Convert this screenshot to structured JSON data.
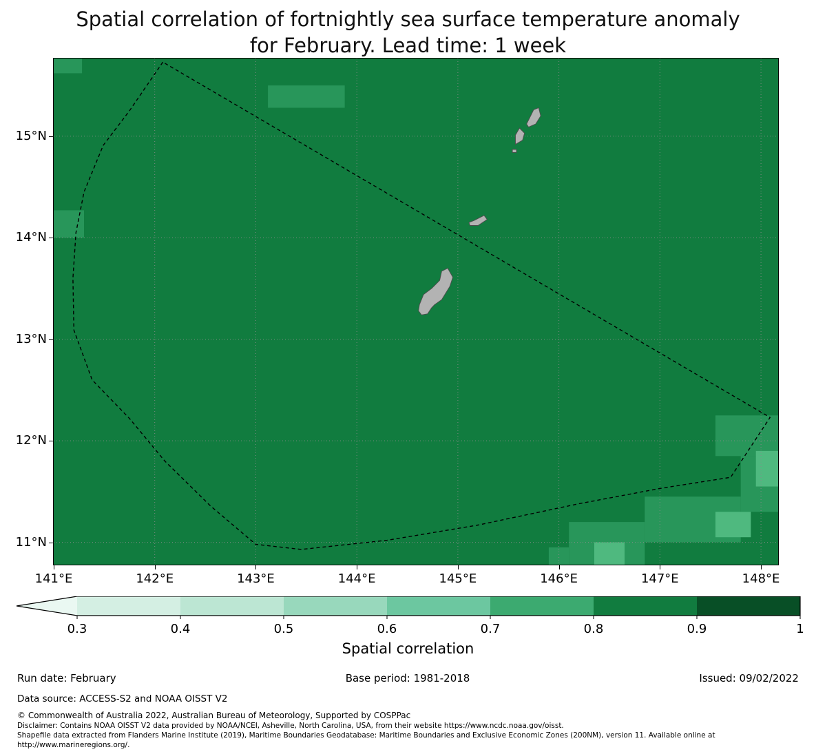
{
  "title": {
    "line1": "Spatial correlation of fortnightly sea surface temperature anomaly",
    "line2": "for February. Lead time: 1 week"
  },
  "footer": {
    "run_date": "Run date: February",
    "base_period": "Base period: 1981-2018",
    "issued": "Issued: 09/02/2022",
    "data_source": "Data source: ACCESS-S2 and NOAA OISST V2",
    "copyright": "© Commonwealth of Australia 2022, Australian Bureau of Meteorology, Supported by COSPPac",
    "disclaimer": "Disclaimer: Contains NOAA OISST V2 data provided by NOAA/NCEI, Asheville, North Carolina, USA, from their website https://www.ncdc.noaa.gov/oisst.",
    "shapefile_note": "Shapefile data extracted from Flanders Marine Institute (2019), Maritime Boundaries Geodatabase: Maritime Boundaries and Exclusive Economic Zones (200NM), version 11. Available online at http://www.marineregions.org/."
  },
  "chart_data": {
    "type": "heatmap",
    "title": "Spatial correlation of fortnightly sea surface temperature anomaly for February. Lead time: 1 week",
    "colorbar_label": "Spatial correlation",
    "region": "Guam / Northern Mariana Islands (lon-lat map)",
    "lon_range": [
      141.0,
      148.17
    ],
    "lat_range": [
      10.78,
      15.765
    ],
    "x_tick_values": [
      141,
      142,
      143,
      144,
      145,
      146,
      147,
      148
    ],
    "x_tick_labels": [
      "141°E",
      "142°E",
      "143°E",
      "144°E",
      "145°E",
      "146°E",
      "147°E",
      "148°E"
    ],
    "y_tick_values": [
      11,
      12,
      13,
      14,
      15
    ],
    "y_tick_labels": [
      "11°N",
      "12°N",
      "13°N",
      "14°N",
      "15°N"
    ],
    "grid": true,
    "base_value_bin": "0.8-0.9",
    "base_color": "#117c3f",
    "patch_colors": [
      "#28965a",
      "#4fb97f"
    ],
    "patches": [
      [
        141.0,
        15.62,
        141.28,
        15.77,
        1
      ],
      [
        143.12,
        15.28,
        143.88,
        15.5,
        1
      ],
      [
        141.0,
        14.0,
        141.3,
        14.27,
        1
      ],
      [
        147.55,
        11.85,
        148.2,
        12.25,
        1
      ],
      [
        147.8,
        11.3,
        148.2,
        11.85,
        1
      ],
      [
        147.95,
        11.55,
        148.2,
        11.9,
        2
      ],
      [
        146.85,
        11.0,
        147.8,
        11.45,
        1
      ],
      [
        147.55,
        11.05,
        147.9,
        11.3,
        2
      ],
      [
        146.1,
        10.78,
        146.85,
        11.2,
        1
      ],
      [
        146.35,
        10.78,
        146.65,
        11.0,
        2
      ],
      [
        145.9,
        10.78,
        146.1,
        10.95,
        1
      ]
    ],
    "colorbar": {
      "orientation": "horizontal",
      "extend": "min",
      "levels": [
        0.3,
        0.4,
        0.5,
        0.6,
        0.7,
        0.8,
        0.9,
        1.0
      ],
      "tick_labels": [
        "0.3",
        "0.4",
        "0.5",
        "0.6",
        "0.7",
        "0.8",
        "0.9",
        "1"
      ],
      "segment_colors": [
        "#d4efe3",
        "#bce6d3",
        "#98d8bc",
        "#6cc7a0",
        "#3caa70",
        "#117c3f",
        "#084f26"
      ],
      "under_color": "#eaf8f2"
    },
    "eez_boundary": [
      [
        142.08,
        15.73
      ],
      [
        141.75,
        15.25
      ],
      [
        141.49,
        14.91
      ],
      [
        141.3,
        14.45
      ],
      [
        141.22,
        14.05
      ],
      [
        141.19,
        13.6
      ],
      [
        141.2,
        13.09
      ],
      [
        141.38,
        12.6
      ],
      [
        141.75,
        12.22
      ],
      [
        142.1,
        11.8
      ],
      [
        142.55,
        11.36
      ],
      [
        143.0,
        10.98
      ],
      [
        143.45,
        10.93
      ],
      [
        144.3,
        11.02
      ],
      [
        145.2,
        11.17
      ],
      [
        146.2,
        11.38
      ],
      [
        147.0,
        11.53
      ],
      [
        147.7,
        11.64
      ],
      [
        148.09,
        12.23
      ]
    ],
    "islands": [
      {
        "name": "guam",
        "polygon": [
          [
            144.64,
            13.24
          ],
          [
            144.7,
            13.25
          ],
          [
            144.74,
            13.31
          ],
          [
            144.77,
            13.34
          ],
          [
            144.84,
            13.39
          ],
          [
            144.92,
            13.52
          ],
          [
            144.95,
            13.61
          ],
          [
            144.9,
            13.7
          ],
          [
            144.84,
            13.67
          ],
          [
            144.82,
            13.58
          ],
          [
            144.74,
            13.5
          ],
          [
            144.66,
            13.44
          ],
          [
            144.62,
            13.34
          ],
          [
            144.61,
            13.28
          ]
        ]
      },
      {
        "name": "rota",
        "polygon": [
          [
            145.12,
            14.12
          ],
          [
            145.2,
            14.12
          ],
          [
            145.29,
            14.18
          ],
          [
            145.26,
            14.22
          ],
          [
            145.16,
            14.17
          ],
          [
            145.11,
            14.15
          ]
        ]
      },
      {
        "name": "aguijan",
        "polygon": [
          [
            145.54,
            14.84
          ],
          [
            145.58,
            14.84
          ],
          [
            145.58,
            14.87
          ],
          [
            145.54,
            14.87
          ]
        ]
      },
      {
        "name": "tinian",
        "polygon": [
          [
            145.57,
            14.92
          ],
          [
            145.64,
            14.96
          ],
          [
            145.66,
            15.03
          ],
          [
            145.61,
            15.08
          ],
          [
            145.57,
            15.01
          ]
        ]
      },
      {
        "name": "saipan",
        "polygon": [
          [
            145.7,
            15.09
          ],
          [
            145.77,
            15.12
          ],
          [
            145.82,
            15.2
          ],
          [
            145.8,
            15.28
          ],
          [
            145.75,
            15.26
          ],
          [
            145.71,
            15.18
          ],
          [
            145.68,
            15.12
          ]
        ]
      }
    ]
  }
}
